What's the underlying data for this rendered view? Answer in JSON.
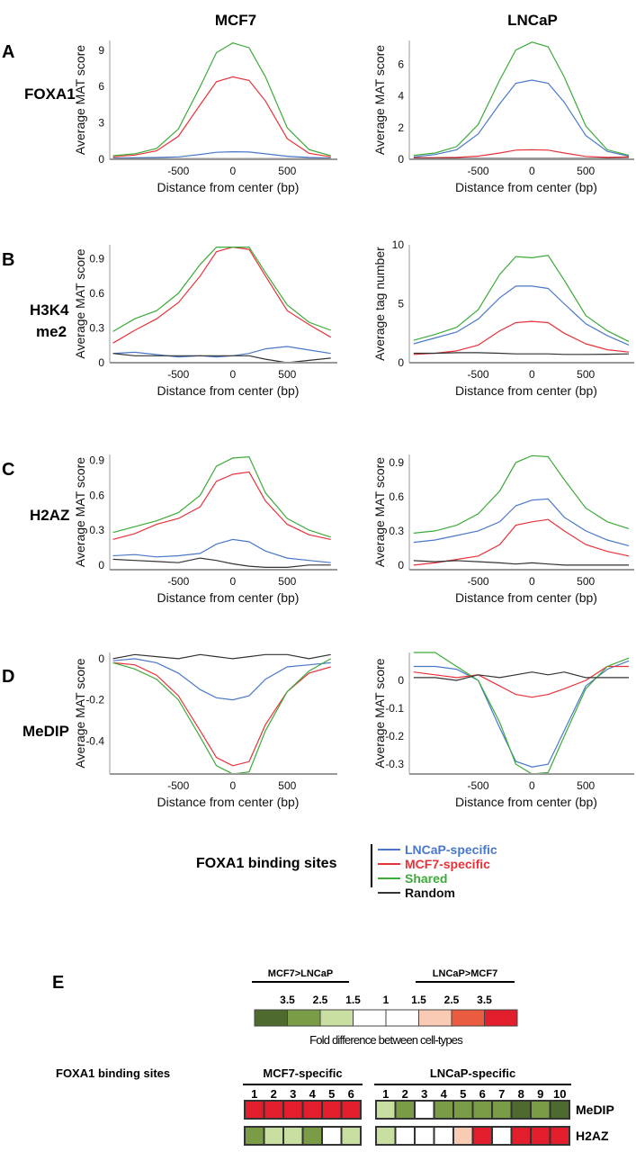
{
  "columns": [
    "MCF7",
    "LNCaP"
  ],
  "panel_letters": [
    "A",
    "B",
    "C",
    "D",
    "E"
  ],
  "row_labels": [
    "FOXA1",
    "H3K4",
    "me2",
    "H2AZ",
    "MeDIP"
  ],
  "series_colors": {
    "LNCaP-specific": "#4a78c8",
    "MCF7-specific": "#e8323a",
    "Shared": "#3daa3a",
    "Random": "#333333"
  },
  "legend": {
    "title": "FOXA1 binding sites",
    "items": [
      {
        "label": "LNCaP-specific",
        "color": "#4a78c8"
      },
      {
        "label": "MCF7-specific",
        "color": "#e8323a"
      },
      {
        "label": "Shared",
        "color": "#3daa3a"
      },
      {
        "label": "Random",
        "color": "#333333"
      }
    ]
  },
  "chart_data": [
    {
      "type": "line",
      "panel": "A",
      "cell": "MCF7",
      "xlabel": "Distance from center (bp)",
      "ylabel": "Average MAT score",
      "xlim": [
        -1130,
        960
      ],
      "ylim": [
        0,
        9.8
      ],
      "xticks": [
        -500,
        0,
        500
      ],
      "yticks": [
        0,
        3,
        6,
        9
      ],
      "grid": false,
      "x": [
        -1100,
        -900,
        -700,
        -500,
        -300,
        -150,
        0,
        150,
        300,
        500,
        700,
        900
      ],
      "series": [
        {
          "name": "LNCaP-specific",
          "values": [
            0.1,
            0.12,
            0.15,
            0.2,
            0.4,
            0.58,
            0.62,
            0.6,
            0.45,
            0.25,
            0.15,
            0.1
          ]
        },
        {
          "name": "MCF7-specific",
          "values": [
            0.2,
            0.35,
            0.7,
            1.9,
            4.5,
            6.4,
            6.8,
            6.5,
            4.8,
            1.7,
            0.5,
            0.2
          ]
        },
        {
          "name": "Shared",
          "values": [
            0.3,
            0.45,
            0.9,
            2.5,
            6,
            8.8,
            9.6,
            9.2,
            6.8,
            2.6,
            0.8,
            0.3
          ]
        },
        {
          "name": "Random",
          "values": [
            0.05,
            0.05,
            0.05,
            0.05,
            0.05,
            0.05,
            0.05,
            0.05,
            0.05,
            0.05,
            0.05,
            0.05
          ]
        }
      ]
    },
    {
      "type": "line",
      "panel": "A",
      "cell": "LNCaP",
      "xlabel": "Distance from center (bp)",
      "ylabel": "Average MAT score",
      "xlim": [
        -1140,
        950
      ],
      "ylim": [
        0,
        7.5
      ],
      "xticks": [
        -500,
        0,
        500
      ],
      "yticks": [
        0,
        2,
        4,
        6
      ],
      "grid": false,
      "x": [
        -1100,
        -900,
        -700,
        -500,
        -300,
        -150,
        0,
        150,
        300,
        500,
        700,
        900
      ],
      "series": [
        {
          "name": "LNCaP-specific",
          "values": [
            0.15,
            0.3,
            0.6,
            1.6,
            3.5,
            4.8,
            5.0,
            4.8,
            3.6,
            1.5,
            0.5,
            0.2
          ]
        },
        {
          "name": "MCF7-specific",
          "values": [
            0.1,
            0.1,
            0.12,
            0.2,
            0.4,
            0.58,
            0.6,
            0.58,
            0.4,
            0.18,
            0.12,
            0.15
          ]
        },
        {
          "name": "Shared",
          "values": [
            0.25,
            0.4,
            0.8,
            2.2,
            5,
            6.9,
            7.4,
            7.1,
            5.2,
            2.1,
            0.6,
            0.25
          ]
        },
        {
          "name": "Random",
          "values": [
            0.05,
            0.05,
            0.05,
            0.05,
            0.05,
            0.05,
            0.05,
            0.05,
            0.05,
            0.05,
            0.05,
            0.05
          ]
        }
      ]
    },
    {
      "type": "line",
      "panel": "B",
      "cell": "MCF7",
      "xlabel": "Distance from center (bp)",
      "ylabel": "Average MAT score",
      "xlim": [
        -1130,
        960
      ],
      "ylim": [
        0,
        1.02
      ],
      "xticks": [
        -500,
        0,
        500
      ],
      "yticks": [
        0,
        0.3,
        0.6,
        0.9
      ],
      "grid": false,
      "x": [
        -1100,
        -900,
        -700,
        -500,
        -300,
        -150,
        0,
        150,
        300,
        500,
        700,
        900
      ],
      "series": [
        {
          "name": "LNCaP-specific",
          "values": [
            0.08,
            0.09,
            0.07,
            0.05,
            0.06,
            0.05,
            0.06,
            0.08,
            0.12,
            0.14,
            0.11,
            0.08
          ]
        },
        {
          "name": "MCF7-specific",
          "values": [
            0.17,
            0.28,
            0.38,
            0.52,
            0.75,
            0.96,
            1.0,
            0.98,
            0.75,
            0.45,
            0.33,
            0.22
          ]
        },
        {
          "name": "Shared",
          "values": [
            0.27,
            0.38,
            0.45,
            0.6,
            0.85,
            1.0,
            1.0,
            1.0,
            0.78,
            0.5,
            0.35,
            0.28
          ]
        },
        {
          "name": "Random",
          "values": [
            0.08,
            0.06,
            0.06,
            0.06,
            0.06,
            0.06,
            0.06,
            0.06,
            0.03,
            0.0,
            0.02,
            0.04
          ]
        }
      ]
    },
    {
      "type": "line",
      "panel": "B",
      "cell": "LNCaP",
      "xlabel": "Distance from center (bp)",
      "ylabel": "Average tag number",
      "xlim": [
        -1140,
        950
      ],
      "ylim": [
        0,
        10
      ],
      "xticks": [
        -500,
        0,
        500
      ],
      "yticks": [
        0,
        5,
        10
      ],
      "grid": false,
      "x": [
        -1100,
        -900,
        -700,
        -500,
        -300,
        -150,
        0,
        150,
        300,
        500,
        700,
        900
      ],
      "series": [
        {
          "name": "LNCaP-specific",
          "values": [
            1.6,
            2.1,
            2.6,
            3.7,
            5.5,
            6.5,
            6.5,
            6.3,
            5.0,
            3.3,
            2.3,
            1.5
          ]
        },
        {
          "name": "MCF7-specific",
          "values": [
            0.7,
            0.8,
            1.0,
            1.5,
            2.7,
            3.4,
            3.5,
            3.4,
            2.5,
            1.6,
            1.1,
            0.9
          ]
        },
        {
          "name": "Shared",
          "values": [
            1.9,
            2.4,
            3.0,
            4.5,
            7.5,
            9.0,
            8.9,
            9.1,
            7.0,
            4.0,
            2.7,
            1.8
          ]
        },
        {
          "name": "Random",
          "values": [
            0.8,
            0.8,
            0.85,
            0.85,
            0.8,
            0.75,
            0.75,
            0.75,
            0.7,
            0.7,
            0.72,
            0.75
          ]
        }
      ]
    },
    {
      "type": "line",
      "panel": "C",
      "cell": "MCF7",
      "xlabel": "Distance from center (bp)",
      "ylabel": "Average MAT score",
      "xlim": [
        -1130,
        960
      ],
      "ylim": [
        -0.04,
        0.95
      ],
      "xticks": [
        -500,
        0,
        500
      ],
      "yticks": [
        0,
        0.3,
        0.6,
        0.9
      ],
      "grid": false,
      "x": [
        -1100,
        -900,
        -700,
        -500,
        -300,
        -150,
        0,
        150,
        300,
        500,
        700,
        900
      ],
      "series": [
        {
          "name": "LNCaP-specific",
          "values": [
            0.08,
            0.09,
            0.07,
            0.08,
            0.1,
            0.18,
            0.22,
            0.2,
            0.12,
            0.06,
            0.04,
            0.02
          ]
        },
        {
          "name": "MCF7-specific",
          "values": [
            0.22,
            0.27,
            0.35,
            0.4,
            0.5,
            0.72,
            0.78,
            0.8,
            0.55,
            0.35,
            0.26,
            0.22
          ]
        },
        {
          "name": "Shared",
          "values": [
            0.28,
            0.33,
            0.38,
            0.45,
            0.6,
            0.85,
            0.92,
            0.93,
            0.62,
            0.4,
            0.3,
            0.24
          ]
        },
        {
          "name": "Random",
          "values": [
            0.05,
            0.04,
            0.03,
            0.02,
            0.06,
            0.04,
            0.01,
            -0.01,
            -0.02,
            -0.02,
            0.0,
            0.0
          ]
        }
      ]
    },
    {
      "type": "line",
      "panel": "C",
      "cell": "LNCaP",
      "xlabel": "Distance from center (bp)",
      "ylabel": "Average MAT score",
      "xlim": [
        -1140,
        950
      ],
      "ylim": [
        -0.04,
        0.97
      ],
      "xticks": [
        -500,
        0,
        500
      ],
      "yticks": [
        0,
        0.3,
        0.6,
        0.9
      ],
      "grid": false,
      "x": [
        -1100,
        -900,
        -700,
        -500,
        -300,
        -150,
        0,
        150,
        300,
        500,
        700,
        900
      ],
      "series": [
        {
          "name": "LNCaP-specific",
          "values": [
            0.2,
            0.22,
            0.26,
            0.3,
            0.38,
            0.52,
            0.57,
            0.58,
            0.42,
            0.3,
            0.22,
            0.17
          ]
        },
        {
          "name": "MCF7-specific",
          "values": [
            0.0,
            0.02,
            0.05,
            0.08,
            0.18,
            0.35,
            0.38,
            0.4,
            0.3,
            0.18,
            0.12,
            0.08
          ]
        },
        {
          "name": "Shared",
          "values": [
            0.28,
            0.3,
            0.35,
            0.45,
            0.65,
            0.9,
            0.96,
            0.95,
            0.75,
            0.5,
            0.38,
            0.32
          ]
        },
        {
          "name": "Random",
          "values": [
            0.04,
            0.03,
            0.04,
            0.03,
            0.02,
            0.01,
            0.02,
            0.01,
            0.0,
            0.0,
            0.0,
            0.0
          ]
        }
      ]
    },
    {
      "type": "line",
      "panel": "D",
      "cell": "MCF7",
      "xlabel": "Distance from center (bp)",
      "ylabel": "Average MAT score",
      "xlim": [
        -1130,
        960
      ],
      "ylim": [
        -0.56,
        0.03
      ],
      "xticks": [
        -500,
        0,
        500
      ],
      "yticks": [
        0,
        -0.2,
        -0.4
      ],
      "grid": false,
      "x": [
        -1100,
        -900,
        -700,
        -500,
        -300,
        -150,
        0,
        150,
        300,
        500,
        700,
        900
      ],
      "series": [
        {
          "name": "LNCaP-specific",
          "values": [
            -0.01,
            0.0,
            -0.02,
            -0.07,
            -0.15,
            -0.19,
            -0.2,
            -0.18,
            -0.1,
            -0.04,
            -0.03,
            -0.02
          ]
        },
        {
          "name": "MCF7-specific",
          "values": [
            -0.02,
            -0.03,
            -0.08,
            -0.18,
            -0.35,
            -0.48,
            -0.52,
            -0.5,
            -0.32,
            -0.16,
            -0.07,
            -0.04
          ]
        },
        {
          "name": "Shared",
          "values": [
            -0.02,
            -0.05,
            -0.1,
            -0.2,
            -0.38,
            -0.52,
            -0.56,
            -0.55,
            -0.35,
            -0.16,
            -0.06,
            0.0
          ]
        },
        {
          "name": "Random",
          "values": [
            0,
            0.02,
            0.01,
            0.0,
            0.02,
            0.01,
            0.0,
            0.01,
            0.02,
            0.02,
            0.0,
            0.02
          ]
        }
      ]
    },
    {
      "type": "line",
      "panel": "D",
      "cell": "LNCaP",
      "xlabel": "Distance from center (bp)",
      "ylabel": "Average MAT score",
      "xlim": [
        -1140,
        950
      ],
      "ylim": [
        -0.335,
        0.1
      ],
      "xticks": [
        -500,
        0,
        500
      ],
      "yticks": [
        0,
        -0.1,
        -0.2,
        -0.3
      ],
      "grid": false,
      "x": [
        -1100,
        -900,
        -700,
        -500,
        -300,
        -150,
        0,
        150,
        300,
        500,
        700,
        900
      ],
      "series": [
        {
          "name": "LNCaP-specific",
          "values": [
            0.05,
            0.05,
            0.04,
            0.0,
            -0.17,
            -0.29,
            -0.31,
            -0.3,
            -0.18,
            -0.02,
            0.04,
            0.07
          ]
        },
        {
          "name": "MCF7-specific",
          "values": [
            0.03,
            0.02,
            0.01,
            0.02,
            -0.02,
            -0.05,
            -0.06,
            -0.05,
            -0.03,
            0.0,
            0.05,
            0.05
          ]
        },
        {
          "name": "Shared",
          "values": [
            0.1,
            0.1,
            0.05,
            0.0,
            -0.15,
            -0.3,
            -0.335,
            -0.33,
            -0.2,
            -0.03,
            0.05,
            0.08
          ]
        },
        {
          "name": "Random",
          "values": [
            0.01,
            0.01,
            0.0,
            0.02,
            0.01,
            0.02,
            0.03,
            0.02,
            0.03,
            0.01,
            0.01,
            0.01
          ]
        }
      ]
    },
    {
      "type": "heatmap",
      "panel": "E",
      "scale": {
        "left_label": "MCF7>LNCaP",
        "right_label": "LNCaP>MCF7",
        "tick_labels": [
          "3.5",
          "2.5",
          "1.5",
          "1",
          "1.5",
          "2.5",
          "3.5"
        ],
        "colors": [
          "#4e6a2e",
          "#7b9c46",
          "#c9dfa2",
          "#ffffff",
          "#ffffff",
          "#f9cbb5",
          "#e95c40",
          "#e31e2c"
        ],
        "caption": "Fold difference between cell-types"
      },
      "row_group_label": "FOXA1 binding sites",
      "groups": [
        {
          "label": "MCF7-specific",
          "columns": [
            "1",
            "2",
            "3",
            "4",
            "5",
            "6"
          ]
        },
        {
          "label": "LNCaP-specific",
          "columns": [
            "1",
            "2",
            "3",
            "4",
            "5",
            "6",
            "7",
            "8",
            "9",
            "10"
          ]
        }
      ],
      "rows": [
        {
          "label": "MeDIP",
          "levels": [
            [
              7,
              7,
              7,
              7,
              7,
              7
            ],
            [
              2,
              1,
              3,
              1,
              1,
              1,
              1,
              0,
              1,
              0
            ]
          ]
        },
        {
          "label": "H2AZ",
          "levels": [
            [
              1,
              2,
              2,
              1,
              3,
              2
            ],
            [
              2,
              3,
              3,
              3,
              5,
              7,
              3,
              7,
              7,
              7
            ]
          ]
        }
      ]
    }
  ]
}
